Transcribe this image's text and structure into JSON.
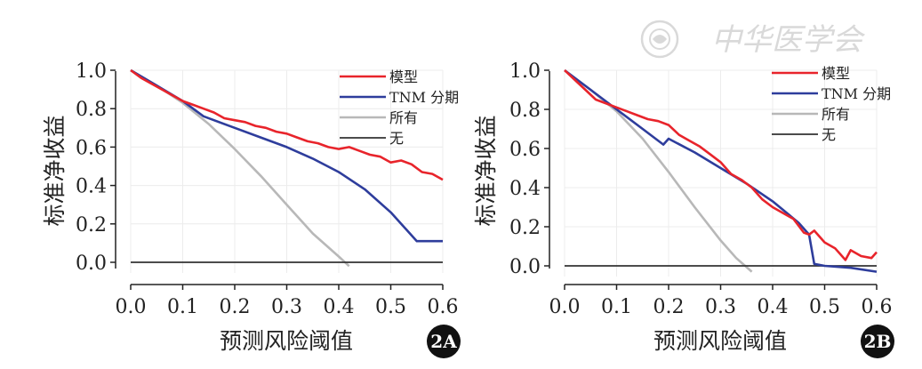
{
  "watermark": {
    "text": "中华医学会"
  },
  "chart_data": [
    {
      "type": "line",
      "panel_label": "2A",
      "xlabel": "预测风险阈值",
      "ylabel": "标准净收益",
      "xlim": [
        0,
        0.6
      ],
      "ylim": [
        -0.03,
        1.0
      ],
      "xticks": [
        "0.0",
        "0.1",
        "0.2",
        "0.3",
        "0.4",
        "0.5",
        "0.6"
      ],
      "yticks": [
        "0.0",
        "0.2",
        "0.4",
        "0.6",
        "0.8",
        "1.0"
      ],
      "grid": true,
      "legend_position": "top-right",
      "series": [
        {
          "name": "模型",
          "color": "#e8242b",
          "x": [
            0.0,
            0.02,
            0.04,
            0.06,
            0.08,
            0.1,
            0.12,
            0.14,
            0.16,
            0.18,
            0.2,
            0.22,
            0.24,
            0.26,
            0.28,
            0.3,
            0.32,
            0.34,
            0.36,
            0.38,
            0.4,
            0.42,
            0.44,
            0.46,
            0.48,
            0.5,
            0.52,
            0.54,
            0.56,
            0.58,
            0.6
          ],
          "y": [
            1.0,
            0.96,
            0.93,
            0.9,
            0.87,
            0.84,
            0.82,
            0.8,
            0.78,
            0.75,
            0.74,
            0.73,
            0.71,
            0.7,
            0.68,
            0.67,
            0.65,
            0.63,
            0.62,
            0.6,
            0.59,
            0.6,
            0.58,
            0.56,
            0.55,
            0.52,
            0.53,
            0.51,
            0.47,
            0.46,
            0.43
          ]
        },
        {
          "name": "TNM 分期",
          "color": "#2e3d9c",
          "x": [
            0.0,
            0.05,
            0.1,
            0.14,
            0.2,
            0.25,
            0.3,
            0.35,
            0.4,
            0.45,
            0.5,
            0.53,
            0.55,
            0.6
          ],
          "y": [
            1.0,
            0.92,
            0.84,
            0.76,
            0.7,
            0.65,
            0.6,
            0.54,
            0.47,
            0.38,
            0.26,
            0.17,
            0.11,
            0.11
          ]
        },
        {
          "name": "所有",
          "color": "#b8b8b8",
          "x": [
            0.0,
            0.05,
            0.1,
            0.15,
            0.2,
            0.25,
            0.3,
            0.35,
            0.4,
            0.42
          ],
          "y": [
            1.0,
            0.92,
            0.83,
            0.72,
            0.59,
            0.45,
            0.3,
            0.15,
            0.03,
            -0.02
          ]
        },
        {
          "name": "无",
          "color": "#333333",
          "x": [
            0.0,
            0.6
          ],
          "y": [
            0.0,
            0.0
          ]
        }
      ]
    },
    {
      "type": "line",
      "panel_label": "2B",
      "xlabel": "预测风险阈值",
      "ylabel": "标准净收益",
      "xlim": [
        0,
        0.6
      ],
      "ylim": [
        -0.03,
        1.0
      ],
      "xticks": [
        "0.0",
        "0.1",
        "0.2",
        "0.3",
        "0.4",
        "0.5",
        "0.6"
      ],
      "yticks": [
        "0.0",
        "0.2",
        "0.4",
        "0.6",
        "0.8",
        "1.0"
      ],
      "grid": true,
      "legend_position": "top-right",
      "series": [
        {
          "name": "模型",
          "color": "#e8242b",
          "x": [
            0.0,
            0.02,
            0.04,
            0.06,
            0.08,
            0.1,
            0.12,
            0.14,
            0.16,
            0.18,
            0.2,
            0.22,
            0.24,
            0.26,
            0.28,
            0.3,
            0.32,
            0.34,
            0.36,
            0.38,
            0.4,
            0.42,
            0.44,
            0.46,
            0.47,
            0.48,
            0.5,
            0.52,
            0.54,
            0.55,
            0.57,
            0.59,
            0.6
          ],
          "y": [
            1.0,
            0.95,
            0.9,
            0.85,
            0.83,
            0.81,
            0.79,
            0.77,
            0.75,
            0.74,
            0.72,
            0.67,
            0.64,
            0.61,
            0.57,
            0.53,
            0.47,
            0.44,
            0.4,
            0.34,
            0.3,
            0.27,
            0.24,
            0.17,
            0.16,
            0.18,
            0.12,
            0.09,
            0.03,
            0.08,
            0.05,
            0.04,
            0.07
          ]
        },
        {
          "name": "TNM 分期",
          "color": "#2e3d9c",
          "x": [
            0.0,
            0.05,
            0.1,
            0.15,
            0.19,
            0.2,
            0.25,
            0.3,
            0.35,
            0.4,
            0.45,
            0.47,
            0.48,
            0.5,
            0.55,
            0.6
          ],
          "y": [
            1.0,
            0.9,
            0.8,
            0.7,
            0.62,
            0.65,
            0.58,
            0.5,
            0.42,
            0.33,
            0.22,
            0.16,
            0.01,
            0.0,
            -0.01,
            -0.03
          ]
        },
        {
          "name": "所有",
          "color": "#b8b8b8",
          "x": [
            0.0,
            0.05,
            0.1,
            0.15,
            0.2,
            0.25,
            0.3,
            0.33,
            0.36
          ],
          "y": [
            1.0,
            0.9,
            0.79,
            0.65,
            0.48,
            0.3,
            0.13,
            0.04,
            -0.03
          ]
        },
        {
          "name": "无",
          "color": "#333333",
          "x": [
            0.0,
            0.6
          ],
          "y": [
            0.0,
            0.0
          ]
        }
      ]
    }
  ]
}
